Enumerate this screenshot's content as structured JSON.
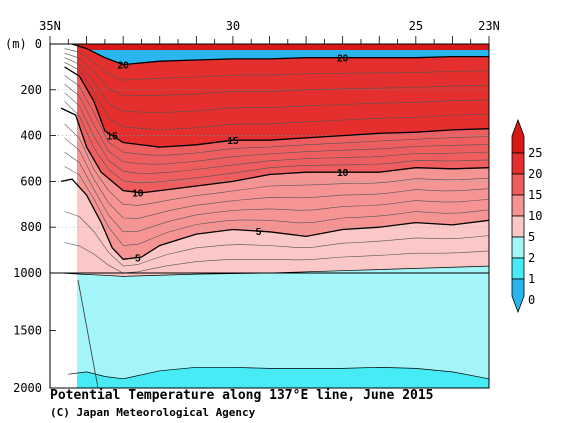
{
  "chart_data": {
    "type": "heatmap",
    "title": "Potential Temperature along 137°E line, June 2015",
    "credit": "(C) Japan Meteorological Agency",
    "x_axis": {
      "quantity": "latitude",
      "direction": "north-to-south",
      "range": [
        35,
        23
      ],
      "tick_labels": [
        {
          "value": 35,
          "label": "35N"
        },
        {
          "value": 30,
          "label": "30"
        },
        {
          "value": 25,
          "label": "25"
        },
        {
          "value": 23,
          "label": "23N"
        }
      ]
    },
    "y_axis": {
      "unit_label": "(m)",
      "quantity": "depth",
      "inverted": true,
      "range": [
        0,
        2000
      ],
      "scale_break_at": 1000,
      "tick_labels": [
        {
          "value": 0,
          "label": "0"
        },
        {
          "value": 200,
          "label": "200"
        },
        {
          "value": 400,
          "label": "400"
        },
        {
          "value": 600,
          "label": "600"
        },
        {
          "value": 800,
          "label": "800"
        },
        {
          "value": 1000,
          "label": "1000"
        },
        {
          "value": 1500,
          "label": "1500"
        },
        {
          "value": 2000,
          "label": "2000"
        }
      ]
    },
    "colorbar": {
      "labels": [
        "25",
        "20",
        "15",
        "10",
        "5",
        "2",
        "1",
        "0"
      ],
      "bands": [
        {
          "from": 0,
          "to": 1,
          "color": "#29b6f0"
        },
        {
          "from": 1,
          "to": 2,
          "color": "#46ebf5"
        },
        {
          "from": 2,
          "to": 5,
          "color": "#a4f5f8"
        },
        {
          "from": 5,
          "to": 10,
          "color": "#fbc7c7"
        },
        {
          "from": 10,
          "to": 15,
          "color": "#f69393"
        },
        {
          "from": 15,
          "to": 20,
          "color": "#ef5e5e"
        },
        {
          "from": 20,
          "to": 25,
          "color": "#e52f2f"
        },
        {
          "from": 25,
          "to": 30,
          "color": "#d81818"
        }
      ]
    },
    "isotherms": [
      {
        "value": 20,
        "label": "20",
        "depths": [
          [
            34.4,
            0
          ],
          [
            34.0,
            20
          ],
          [
            33.5,
            60
          ],
          [
            33.0,
            90
          ],
          [
            32.0,
            75
          ],
          [
            31.0,
            70
          ],
          [
            30.0,
            65
          ],
          [
            29.0,
            65
          ],
          [
            28.0,
            60
          ],
          [
            27.0,
            60
          ],
          [
            26.0,
            60
          ],
          [
            25.0,
            60
          ],
          [
            24.0,
            55
          ],
          [
            23.0,
            55
          ]
        ]
      },
      {
        "value": 15,
        "label": "15",
        "depths": [
          [
            34.6,
            100
          ],
          [
            34.2,
            140
          ],
          [
            33.8,
            250
          ],
          [
            33.5,
            380
          ],
          [
            33.0,
            430
          ],
          [
            32.0,
            450
          ],
          [
            31.0,
            440
          ],
          [
            30.0,
            420
          ],
          [
            29.0,
            420
          ],
          [
            28.0,
            410
          ],
          [
            27.0,
            400
          ],
          [
            26.0,
            390
          ],
          [
            25.0,
            385
          ],
          [
            24.0,
            375
          ],
          [
            23.0,
            370
          ]
        ]
      },
      {
        "value": 10,
        "label": "10",
        "depths": [
          [
            34.7,
            280
          ],
          [
            34.3,
            310
          ],
          [
            34.0,
            450
          ],
          [
            33.6,
            560
          ],
          [
            33.0,
            640
          ],
          [
            32.5,
            650
          ],
          [
            32.0,
            640
          ],
          [
            31.0,
            620
          ],
          [
            30.0,
            600
          ],
          [
            29.0,
            570
          ],
          [
            28.0,
            560
          ],
          [
            27.0,
            560
          ],
          [
            26.0,
            560
          ],
          [
            25.0,
            540
          ],
          [
            24.0,
            545
          ],
          [
            23.0,
            540
          ]
        ]
      },
      {
        "value": 5,
        "label": "5",
        "depths": [
          [
            34.7,
            600
          ],
          [
            34.4,
            590
          ],
          [
            34.0,
            660
          ],
          [
            33.6,
            780
          ],
          [
            33.3,
            890
          ],
          [
            33.0,
            940
          ],
          [
            32.5,
            930
          ],
          [
            32.0,
            880
          ],
          [
            31.0,
            830
          ],
          [
            30.0,
            810
          ],
          [
            29.0,
            820
          ],
          [
            28.0,
            840
          ],
          [
            27.0,
            810
          ],
          [
            26.0,
            800
          ],
          [
            25.0,
            780
          ],
          [
            24.0,
            790
          ],
          [
            23.0,
            770
          ]
        ]
      },
      {
        "value": 2,
        "label": "",
        "depths": [
          [
            34.7,
            1000
          ],
          [
            34.2,
            1010
          ],
          [
            33.5,
            1020
          ],
          [
            33.0,
            1030
          ],
          [
            31.0,
            1010
          ],
          [
            29.0,
            1000
          ],
          [
            27.0,
            990
          ],
          [
            25.0,
            980
          ],
          [
            23.0,
            970
          ]
        ]
      },
      {
        "value": 1,
        "label": "",
        "depths": [
          [
            34.5,
            1880
          ],
          [
            34.0,
            1860
          ],
          [
            33.5,
            1900
          ],
          [
            33.0,
            1920
          ],
          [
            32.0,
            1850
          ],
          [
            31.0,
            1820
          ],
          [
            30.0,
            1820
          ],
          [
            29.0,
            1830
          ],
          [
            28.0,
            1830
          ],
          [
            27.0,
            1830
          ],
          [
            26.0,
            1820
          ],
          [
            25.0,
            1830
          ],
          [
            24.0,
            1860
          ],
          [
            23.0,
            1920
          ]
        ]
      }
    ]
  }
}
